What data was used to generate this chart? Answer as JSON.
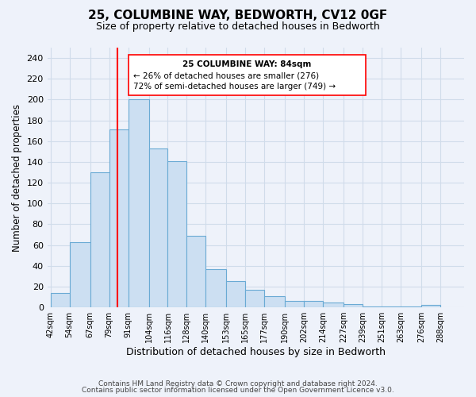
{
  "title": "25, COLUMBINE WAY, BEDWORTH, CV12 0GF",
  "subtitle": "Size of property relative to detached houses in Bedworth",
  "xlabel": "Distribution of detached houses by size in Bedworth",
  "ylabel": "Number of detached properties",
  "bin_labels": [
    "42sqm",
    "54sqm",
    "67sqm",
    "79sqm",
    "91sqm",
    "104sqm",
    "116sqm",
    "128sqm",
    "140sqm",
    "153sqm",
    "165sqm",
    "177sqm",
    "190sqm",
    "202sqm",
    "214sqm",
    "227sqm",
    "239sqm",
    "251sqm",
    "263sqm",
    "276sqm",
    "288sqm"
  ],
  "bin_edges": [
    42,
    54,
    67,
    79,
    91,
    104,
    116,
    128,
    140,
    153,
    165,
    177,
    190,
    202,
    214,
    227,
    239,
    251,
    263,
    276,
    288
  ],
  "bar_heights": [
    14,
    63,
    130,
    171,
    200,
    153,
    141,
    69,
    37,
    25,
    17,
    11,
    6,
    6,
    5,
    3,
    1,
    1,
    1,
    2
  ],
  "bar_color": "#ccdff2",
  "bar_edge_color": "#6aaad4",
  "redline_x": 84,
  "ylim": [
    0,
    250
  ],
  "yticks": [
    0,
    20,
    40,
    60,
    80,
    100,
    120,
    140,
    160,
    180,
    200,
    220,
    240
  ],
  "annotation_text_line1": "25 COLUMBINE WAY: 84sqm",
  "annotation_text_line2": "← 26% of detached houses are smaller (276)",
  "annotation_text_line3": "72% of semi-detached houses are larger (749) →",
  "footer_line1": "Contains HM Land Registry data © Crown copyright and database right 2024.",
  "footer_line2": "Contains public sector information licensed under the Open Government Licence v3.0.",
  "background_color": "#eef2fa",
  "grid_color": "#d8e2f0",
  "title_fontsize": 11,
  "subtitle_fontsize": 9
}
